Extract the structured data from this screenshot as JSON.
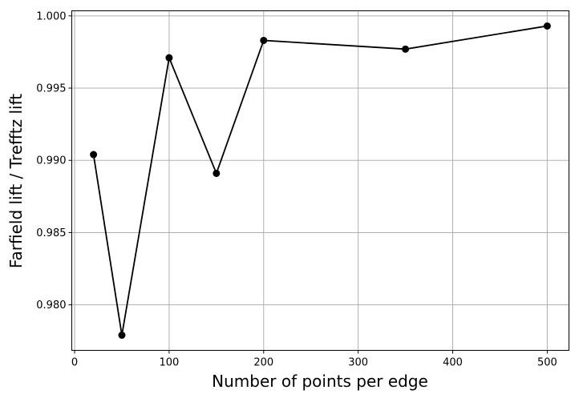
{
  "chart_data": {
    "type": "line",
    "title": "",
    "xlabel": "Number of points per edge",
    "ylabel": "Farfield lift / Trefftz lift",
    "xlim": [
      -3,
      523
    ],
    "ylim": [
      0.97685,
      1.00035
    ],
    "x_ticks": [
      0,
      100,
      200,
      300,
      400,
      500
    ],
    "y_ticks": [
      0.98,
      0.985,
      0.99,
      0.995,
      1.0
    ],
    "x_tick_labels": [
      "0",
      "100",
      "200",
      "300",
      "400",
      "500"
    ],
    "y_tick_labels": [
      "0.980",
      "0.985",
      "0.990",
      "0.995",
      "1.000"
    ],
    "grid": true,
    "series": [
      {
        "marker": "circle",
        "color": "#000000",
        "x": [
          20,
          50,
          100,
          150,
          200,
          350,
          500
        ],
        "y": [
          0.9904,
          0.9779,
          0.9971,
          0.9891,
          0.9983,
          0.9977,
          0.9993
        ]
      }
    ]
  }
}
